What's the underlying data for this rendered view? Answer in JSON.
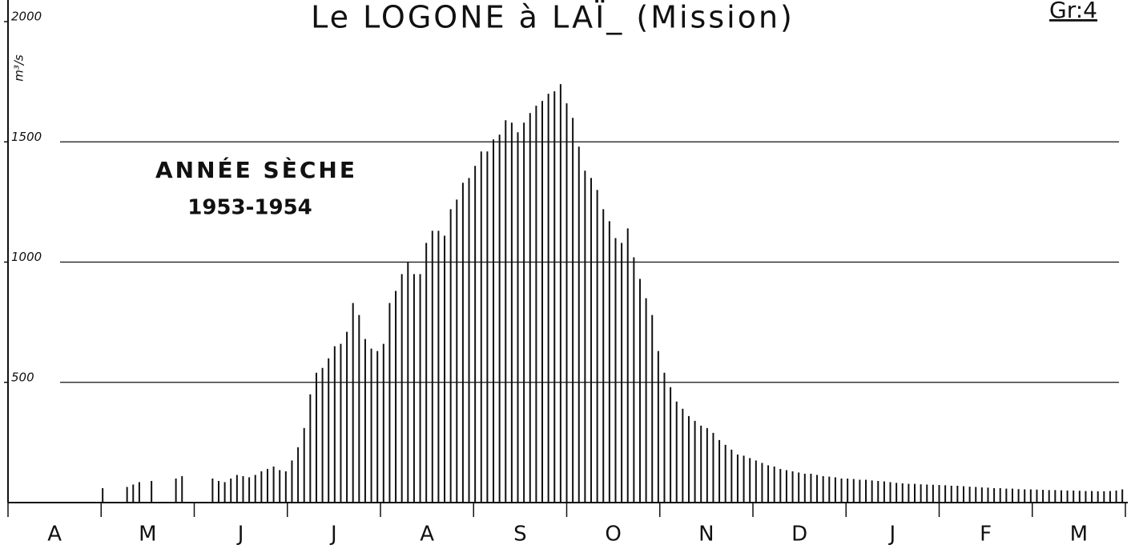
{
  "chart_data": {
    "type": "bar",
    "title": "Le LOGONE à LAÏ_ (Mission)",
    "figure_label": "Gr:4",
    "y_label": "m³/s",
    "annotation": [
      "ANNÉE SÈCHE",
      "1953-1954"
    ],
    "months": [
      "A",
      "M",
      "J",
      "J",
      "A",
      "S",
      "O",
      "N",
      "D",
      "J",
      "F",
      "M"
    ],
    "color": "#111111",
    "ylim": [
      0,
      2000
    ],
    "yticks": [
      500,
      1000,
      1500,
      2000
    ],
    "grid": true,
    "values": [
      null,
      null,
      null,
      null,
      null,
      null,
      null,
      null,
      null,
      null,
      null,
      null,
      null,
      null,
      null,
      60,
      null,
      null,
      null,
      65,
      75,
      85,
      null,
      90,
      null,
      null,
      null,
      100,
      110,
      null,
      null,
      null,
      null,
      100,
      90,
      85,
      100,
      115,
      110,
      105,
      115,
      130,
      140,
      150,
      135,
      130,
      175,
      230,
      310,
      450,
      540,
      560,
      600,
      650,
      660,
      710,
      830,
      780,
      680,
      640,
      630,
      660,
      830,
      880,
      950,
      1000,
      950,
      950,
      1080,
      1130,
      1130,
      1110,
      1220,
      1260,
      1330,
      1350,
      1400,
      1460,
      1460,
      1510,
      1530,
      1590,
      1580,
      1540,
      1580,
      1620,
      1650,
      1670,
      1700,
      1710,
      1740,
      1660,
      1600,
      1480,
      1380,
      1350,
      1300,
      1220,
      1170,
      1100,
      1080,
      1140,
      1020,
      930,
      850,
      780,
      630,
      540,
      480,
      420,
      390,
      360,
      340,
      320,
      310,
      290,
      260,
      240,
      220,
      200,
      195,
      185,
      175,
      165,
      155,
      150,
      140,
      135,
      130,
      125,
      120,
      120,
      115,
      110,
      108,
      105,
      100,
      100,
      98,
      95,
      95,
      92,
      90,
      88,
      85,
      82,
      80,
      78,
      78,
      76,
      75,
      74,
      73,
      72,
      70,
      70,
      68,
      66,
      65,
      63,
      62,
      60,
      60,
      58,
      58,
      56,
      55,
      55,
      54,
      53,
      52,
      52,
      51,
      50,
      50,
      49,
      48,
      48,
      47,
      47,
      48,
      50,
      55
    ]
  }
}
